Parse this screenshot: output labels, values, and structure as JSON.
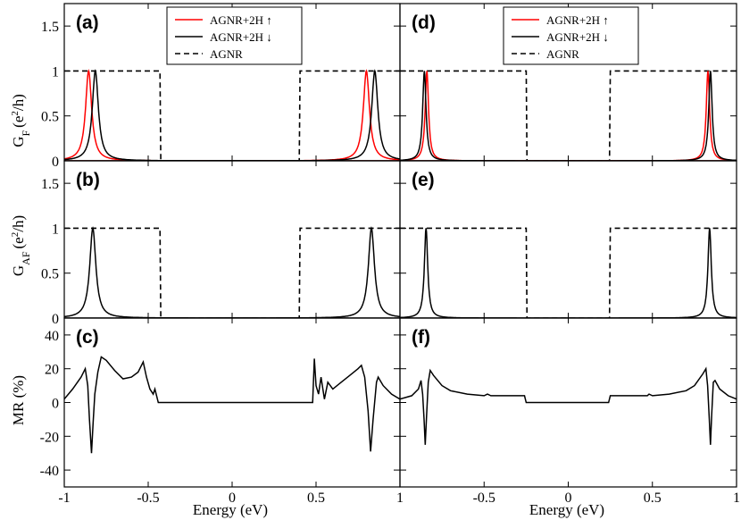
{
  "figure": {
    "x_label": "Energy (eV)",
    "y_labels": {
      "gf_main": "G",
      "gf_sub": "F",
      "gf_unit": "(e",
      "gaf_main": "G",
      "gaf_sub": "AF",
      "unit_sup": "2",
      "unit_end": "/h)",
      "mr": "MR (%)"
    }
  },
  "chart_data": {
    "type": "line",
    "xlim": [
      -1,
      1
    ],
    "x_ticks": [
      "-1",
      "-0.5",
      "0",
      "0.5",
      "1"
    ],
    "legend": [
      {
        "name": "AGNR+2H ↑",
        "color": "#ff0000",
        "style": "solid"
      },
      {
        "name": "AGNR+2H ↓",
        "color": "#000000",
        "style": "solid"
      },
      {
        "name": "AGNR",
        "color": "#000000",
        "style": "dashed"
      }
    ],
    "panels": {
      "a": {
        "label": "(a)",
        "ylim": [
          0,
          1.75
        ],
        "y_ticks": [
          "0",
          "0.5",
          "1",
          "1.5"
        ],
        "gap": [
          -0.43,
          0.4
        ],
        "peaks": [
          {
            "x0": -0.855,
            "g": 0.022,
            "color": "#ff0000"
          },
          {
            "x0": -0.815,
            "g": 0.022,
            "color": "#000000"
          },
          {
            "x0": 0.8,
            "g": 0.022,
            "color": "#ff0000"
          },
          {
            "x0": 0.85,
            "g": 0.022,
            "color": "#000000"
          }
        ]
      },
      "b": {
        "label": "(b)",
        "ylim": [
          0,
          1.75
        ],
        "y_ticks": [
          "0",
          "0.5",
          "1",
          "1.5"
        ],
        "gap": [
          -0.43,
          0.4
        ],
        "peaks": [
          {
            "x0": -0.83,
            "g": 0.022,
            "color": "#000000"
          },
          {
            "x0": 0.83,
            "g": 0.022,
            "color": "#000000"
          }
        ]
      },
      "c": {
        "label": "(c)",
        "ylim": [
          -50,
          50
        ],
        "y_ticks": [
          "-40",
          "-20",
          "0",
          "20",
          "40"
        ],
        "mr": [
          [
            -1,
            2
          ],
          [
            -0.95,
            8
          ],
          [
            -0.9,
            15
          ],
          [
            -0.875,
            20
          ],
          [
            -0.86,
            10
          ],
          [
            -0.85,
            -10
          ],
          [
            -0.838,
            -30
          ],
          [
            -0.828,
            -12
          ],
          [
            -0.818,
            5
          ],
          [
            -0.8,
            18
          ],
          [
            -0.78,
            27
          ],
          [
            -0.75,
            25
          ],
          [
            -0.7,
            19
          ],
          [
            -0.65,
            14
          ],
          [
            -0.6,
            15
          ],
          [
            -0.56,
            18
          ],
          [
            -0.53,
            24
          ],
          [
            -0.51,
            15
          ],
          [
            -0.49,
            8
          ],
          [
            -0.47,
            5
          ],
          [
            -0.46,
            8
          ],
          [
            -0.45,
            4
          ],
          [
            -0.44,
            0
          ],
          [
            0.48,
            0
          ],
          [
            0.49,
            26
          ],
          [
            0.5,
            10
          ],
          [
            0.515,
            5
          ],
          [
            0.53,
            15
          ],
          [
            0.55,
            2
          ],
          [
            0.57,
            12
          ],
          [
            0.6,
            8
          ],
          [
            0.65,
            12
          ],
          [
            0.7,
            16
          ],
          [
            0.75,
            20
          ],
          [
            0.77,
            22
          ],
          [
            0.79,
            15
          ],
          [
            0.81,
            -5
          ],
          [
            0.825,
            -29
          ],
          [
            0.84,
            -10
          ],
          [
            0.86,
            12
          ],
          [
            0.87,
            15
          ],
          [
            0.9,
            10
          ],
          [
            0.95,
            5
          ],
          [
            1,
            2
          ]
        ]
      },
      "d": {
        "label": "(d)",
        "ylim": [
          0,
          1.75
        ],
        "y_ticks": [
          "0",
          "0.5",
          "1",
          "1.5"
        ],
        "gap": [
          -0.25,
          0.25
        ],
        "peaks": [
          {
            "x0": -0.84,
            "g": 0.012,
            "color": "#ff0000"
          },
          {
            "x0": -0.855,
            "g": 0.012,
            "color": "#000000"
          },
          {
            "x0": 0.83,
            "g": 0.012,
            "color": "#ff0000"
          },
          {
            "x0": 0.845,
            "g": 0.012,
            "color": "#000000"
          }
        ]
      },
      "e": {
        "label": "(e)",
        "ylim": [
          0,
          1.75
        ],
        "y_ticks": [
          "0",
          "0.5",
          "1",
          "1.5"
        ],
        "gap": [
          -0.25,
          0.25
        ],
        "peaks": [
          {
            "x0": -0.845,
            "g": 0.012,
            "color": "#000000"
          },
          {
            "x0": 0.84,
            "g": 0.012,
            "color": "#000000"
          }
        ]
      },
      "f": {
        "label": "(f)",
        "ylim": [
          -50,
          50
        ],
        "y_ticks": [
          "-40",
          "-20",
          "0",
          "20",
          "40"
        ],
        "mr": [
          [
            -1,
            2
          ],
          [
            -0.93,
            4
          ],
          [
            -0.89,
            8
          ],
          [
            -0.875,
            13
          ],
          [
            -0.865,
            5
          ],
          [
            -0.857,
            -10
          ],
          [
            -0.85,
            -25
          ],
          [
            -0.842,
            -8
          ],
          [
            -0.832,
            12
          ],
          [
            -0.82,
            19
          ],
          [
            -0.8,
            16
          ],
          [
            -0.75,
            10
          ],
          [
            -0.7,
            7
          ],
          [
            -0.6,
            5
          ],
          [
            -0.5,
            4
          ],
          [
            -0.48,
            5
          ],
          [
            -0.46,
            4
          ],
          [
            -0.3,
            4
          ],
          [
            -0.26,
            4
          ],
          [
            -0.25,
            0
          ],
          [
            0.24,
            0
          ],
          [
            0.25,
            4
          ],
          [
            0.3,
            4
          ],
          [
            0.47,
            4
          ],
          [
            0.48,
            5
          ],
          [
            0.5,
            4
          ],
          [
            0.6,
            5
          ],
          [
            0.7,
            7
          ],
          [
            0.75,
            10
          ],
          [
            0.8,
            17
          ],
          [
            0.818,
            20
          ],
          [
            0.828,
            10
          ],
          [
            0.838,
            -10
          ],
          [
            0.845,
            -25
          ],
          [
            0.852,
            -8
          ],
          [
            0.862,
            12
          ],
          [
            0.872,
            13
          ],
          [
            0.9,
            8
          ],
          [
            0.95,
            4
          ],
          [
            1,
            2
          ]
        ]
      }
    }
  }
}
